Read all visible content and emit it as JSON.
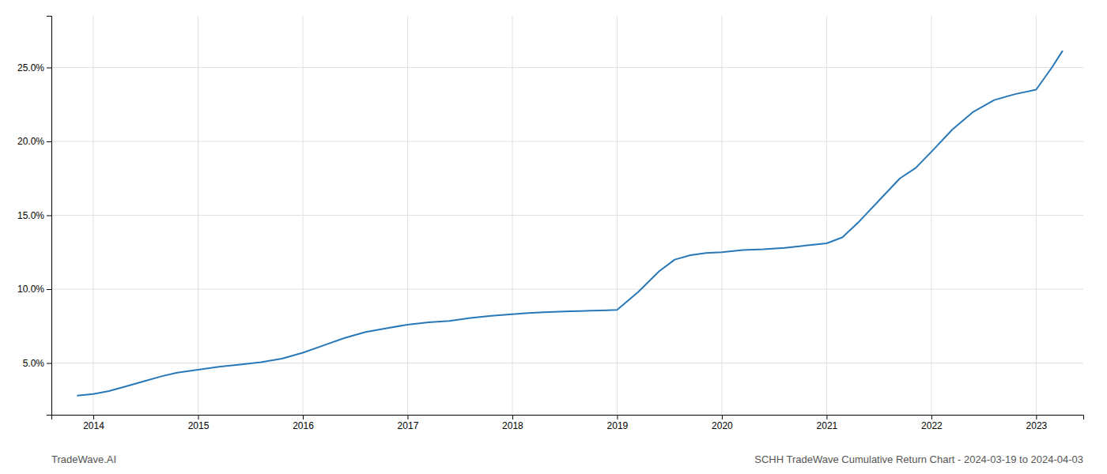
{
  "chart_data": {
    "type": "line",
    "title": "SCHH TradeWave Cumulative Return Chart - 2024-03-19 to 2024-04-03",
    "annotations": [
      "TradeWave.AI"
    ],
    "color": "#2878b8",
    "grid": true,
    "x": [
      2013.85,
      2014.0,
      2014.15,
      2014.3,
      2014.5,
      2014.65,
      2014.8,
      2015.0,
      2015.2,
      2015.4,
      2015.6,
      2015.8,
      2016.0,
      2016.2,
      2016.4,
      2016.6,
      2016.8,
      2017.0,
      2017.2,
      2017.4,
      2017.6,
      2017.8,
      2018.0,
      2018.15,
      2018.3,
      2018.45,
      2018.55,
      2018.65,
      2018.75,
      2018.85,
      2019.0,
      2019.2,
      2019.4,
      2019.55,
      2019.7,
      2019.85,
      2020.0,
      2020.2,
      2020.4,
      2020.6,
      2020.8,
      2021.0,
      2021.15,
      2021.3,
      2021.5,
      2021.7,
      2021.85,
      2022.0,
      2022.2,
      2022.4,
      2022.6,
      2022.8,
      2023.0,
      2023.15,
      2023.25
    ],
    "values": [
      2.8,
      2.9,
      3.1,
      3.4,
      3.8,
      4.1,
      4.35,
      4.55,
      4.75,
      4.9,
      5.05,
      5.3,
      5.7,
      6.2,
      6.7,
      7.1,
      7.35,
      7.6,
      7.75,
      7.85,
      8.05,
      8.2,
      8.3,
      8.38,
      8.44,
      8.48,
      8.5,
      8.52,
      8.54,
      8.56,
      8.6,
      9.8,
      11.2,
      12.0,
      12.3,
      12.45,
      12.5,
      12.65,
      12.7,
      12.8,
      12.95,
      13.1,
      13.5,
      14.5,
      16.0,
      17.5,
      18.2,
      19.3,
      20.8,
      22.0,
      22.8,
      23.2,
      23.5,
      25.0,
      26.1
    ],
    "xlim": [
      2013.6,
      2023.45
    ],
    "xticks": [
      2014,
      2015,
      2016,
      2017,
      2018,
      2019,
      2020,
      2021,
      2022,
      2023
    ],
    "ylim": [
      1.5,
      28.5
    ],
    "yticks": [
      {
        "value": 5.0,
        "label": "5.0%"
      },
      {
        "value": 10.0,
        "label": "10.0%"
      },
      {
        "value": 15.0,
        "label": "15.0%"
      },
      {
        "value": 20.0,
        "label": "20.0%"
      },
      {
        "value": 25.0,
        "label": "25.0%"
      }
    ]
  }
}
